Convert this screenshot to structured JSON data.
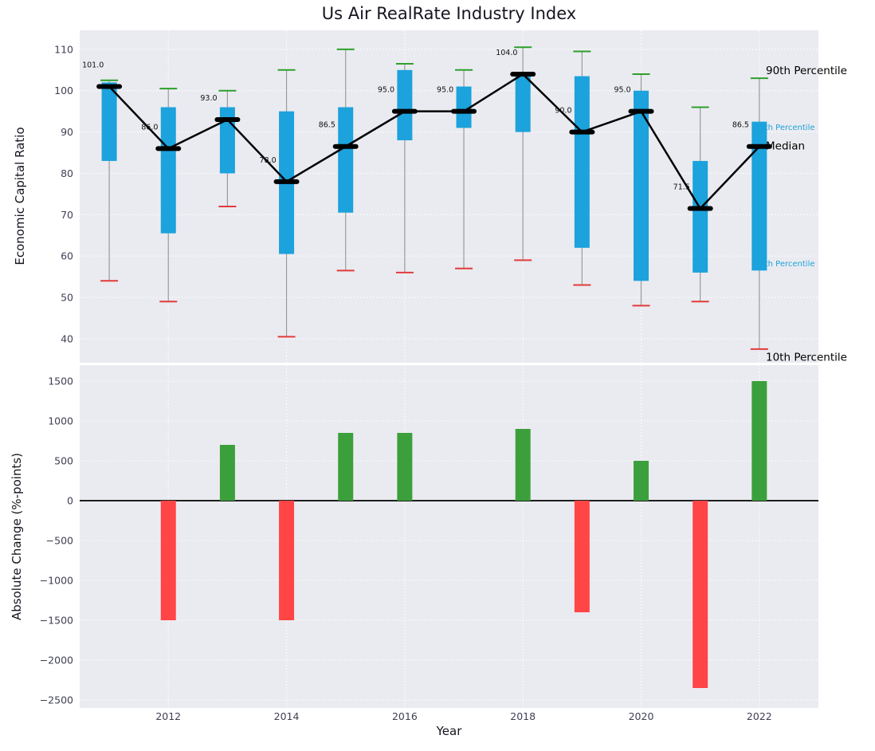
{
  "title": "Us Air RealRate Industry Index",
  "colors": {
    "axes_background": "#eaebf0",
    "grid": "#ffffff",
    "box_fill": "#1ca2dc",
    "median_line": "#000000",
    "whisker": "#9a9a9a",
    "cap_top": "#2da02d",
    "cap_bottom": "#e23b3b",
    "bar_positive": "#3ba03b",
    "bar_negative": "#ff4545",
    "tick_label": "#3f3f55",
    "annotation_blue": "#1ca2dc",
    "zero_line": "#000000"
  },
  "chart_data": [
    {
      "type": "boxplot_with_median_line",
      "title": "Us Air RealRate Industry Index",
      "ylabel": "Economic Capital Ratio",
      "xlim": [
        2010.5,
        2023.0
      ],
      "ylim": [
        34.2,
        114.6
      ],
      "yticks": [
        40,
        50,
        60,
        70,
        80,
        90,
        100,
        110
      ],
      "grid": true,
      "years": [
        2011,
        2012,
        2013,
        2014,
        2015,
        2016,
        2017,
        2018,
        2019,
        2020,
        2021,
        2022
      ],
      "median": [
        101.0,
        86.0,
        93.0,
        78.0,
        86.5,
        95.0,
        95.0,
        104.0,
        90.0,
        95.0,
        71.5,
        86.5
      ],
      "median_labels": [
        "101.0",
        "86.0",
        "93.0",
        "78.0",
        "86.5",
        "95.0",
        "95.0",
        "104.0",
        "90.0",
        "95.0",
        "71.5",
        "86.5"
      ],
      "q1": [
        83,
        65.5,
        80,
        60.5,
        70.5,
        88,
        91,
        90,
        62,
        54,
        56,
        56.5
      ],
      "q3": [
        102,
        96,
        96,
        95,
        96,
        105,
        101,
        104.5,
        103.5,
        100,
        83,
        92.5
      ],
      "p10": [
        54,
        49,
        72,
        40.5,
        56.5,
        56,
        57,
        59,
        53,
        48,
        49,
        37.5
      ],
      "p90": [
        102.5,
        100.5,
        100,
        105,
        110,
        106.5,
        105,
        110.5,
        109.5,
        104,
        96,
        103
      ],
      "annotations": [
        {
          "label": "90th Percentile",
          "value": 104.8,
          "style": "black-large"
        },
        {
          "label": "75th Percentile",
          "value": 91.0,
          "style": "blue-small"
        },
        {
          "label": "Median",
          "value": 86.5,
          "style": "black-large"
        },
        {
          "label": "25th Percentile",
          "value": 58.0,
          "style": "blue-small"
        },
        {
          "label": "10th Percentile",
          "value": 35.5,
          "style": "black-large"
        }
      ]
    },
    {
      "type": "bar",
      "ylabel": "Absolute Change (%-points)",
      "xlabel": "Year",
      "ylim": [
        -2600,
        1700
      ],
      "yticks": [
        1500,
        1000,
        500,
        0,
        -500,
        -1000,
        -1500,
        -2000,
        -2500
      ],
      "xticks": [
        2012,
        2014,
        2016,
        2018,
        2020,
        2022
      ],
      "grid": true,
      "years": [
        2011,
        2012,
        2013,
        2014,
        2015,
        2016,
        2017,
        2018,
        2019,
        2020,
        2021,
        2022
      ],
      "values": [
        0,
        -1500,
        700,
        -1500,
        850,
        850,
        0,
        900,
        -1400,
        500,
        -2350,
        1500
      ]
    }
  ]
}
